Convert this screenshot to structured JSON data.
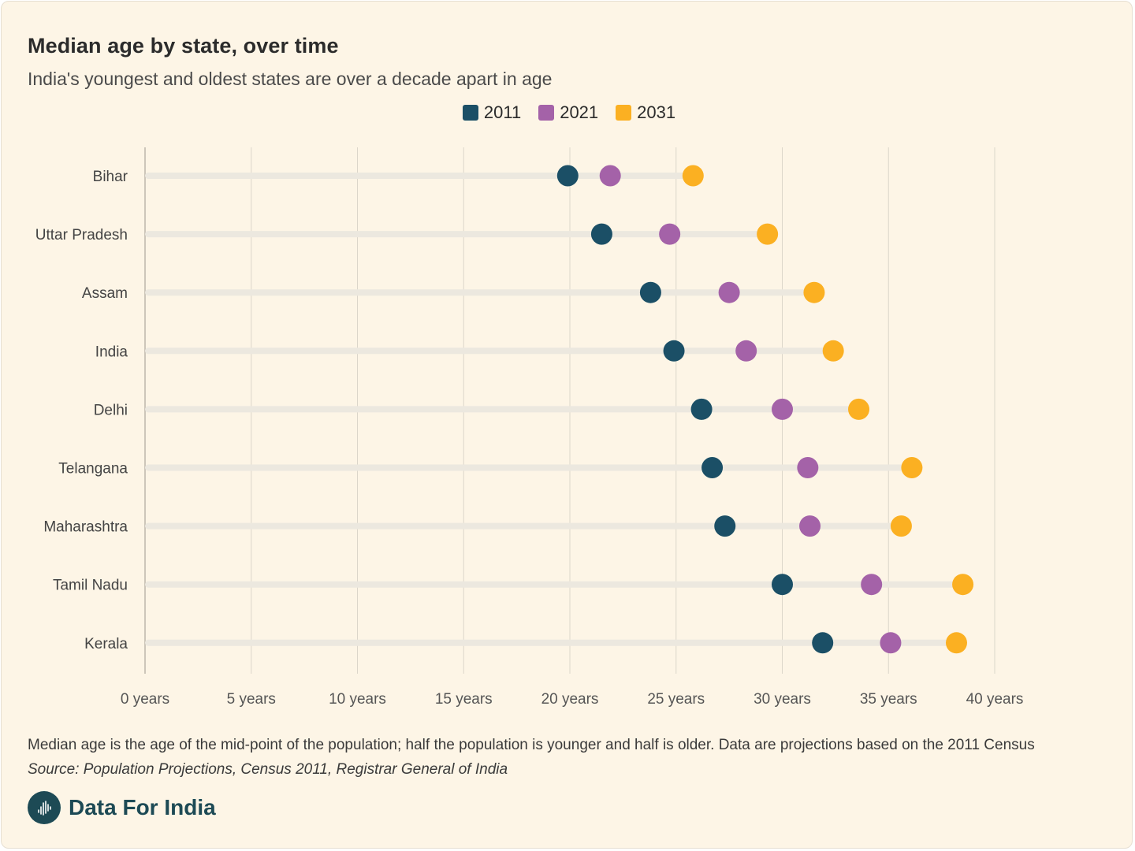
{
  "header": {
    "title": "Median age by state, over time",
    "subtitle": "India's youngest and oldest states are over a decade apart in age"
  },
  "legend": [
    {
      "label": "2011",
      "color": "#1b4f66"
    },
    {
      "label": "2021",
      "color": "#a462a8"
    },
    {
      "label": "2031",
      "color": "#fbb022"
    }
  ],
  "chart_data": {
    "type": "scatter",
    "subtype": "dot-plot",
    "categories": [
      "Bihar",
      "Uttar Pradesh",
      "Assam",
      "India",
      "Delhi",
      "Telangana",
      "Maharashtra",
      "Tamil Nadu",
      "Kerala"
    ],
    "series": [
      {
        "name": "2011",
        "color": "#1b4f66",
        "values": [
          19.9,
          21.5,
          23.8,
          24.9,
          26.2,
          26.7,
          27.3,
          30.0,
          31.9
        ]
      },
      {
        "name": "2021",
        "color": "#a462a8",
        "values": [
          21.9,
          24.7,
          27.5,
          28.3,
          30.0,
          31.2,
          31.3,
          34.2,
          35.1
        ]
      },
      {
        "name": "2031",
        "color": "#fbb022",
        "values": [
          25.8,
          29.3,
          31.5,
          32.4,
          33.6,
          36.1,
          35.6,
          38.5,
          38.2
        ]
      }
    ],
    "x_ticks": [
      0,
      5,
      10,
      15,
      20,
      25,
      30,
      35,
      40
    ],
    "x_tick_labels": [
      "0 years",
      "5 years",
      "10 years",
      "15 years",
      "20 years",
      "25 years",
      "30 years",
      "35 years",
      "40 years"
    ],
    "xlim": [
      0,
      40
    ],
    "grid": "vertical",
    "legend_position": "top-center"
  },
  "footer": {
    "note": "Median age is the age of the mid-point of the population; half the population is younger and half is older. Data are projections based on the 2011 Census",
    "source": "Source: Population Projections, Census 2011, Registrar General of India",
    "brand": "Data For India"
  }
}
